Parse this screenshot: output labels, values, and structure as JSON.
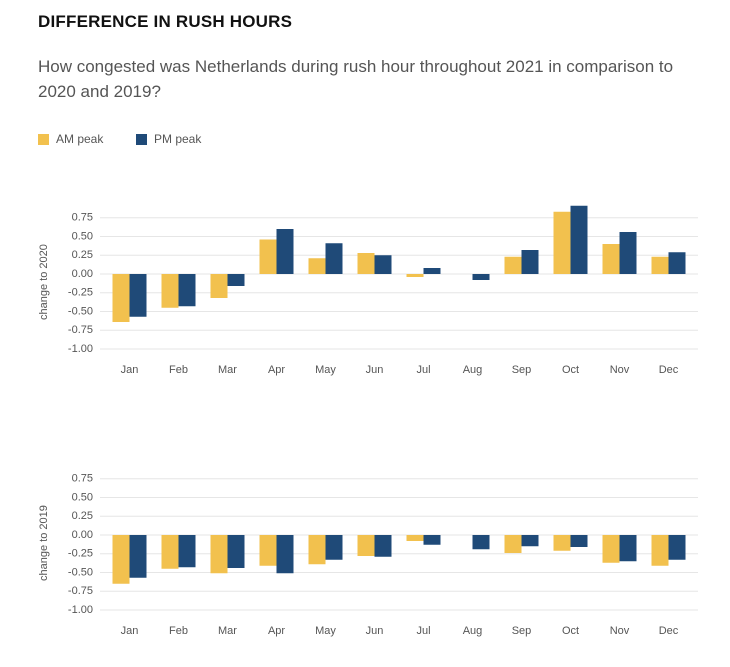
{
  "title": "DIFFERENCE IN RUSH HOURS",
  "subtitle": "How congested was Netherlands during rush hour throughout 2021 in comparison to 2020 and 2019?",
  "chart_data": [
    {
      "type": "bar",
      "y_label": "change to 2020",
      "categories": [
        "Jan",
        "Feb",
        "Mar",
        "Apr",
        "May",
        "Jun",
        "Jul",
        "Aug",
        "Sep",
        "Oct",
        "Nov",
        "Dec"
      ],
      "series": [
        {
          "name": "AM peak",
          "color": "#f2c14e",
          "values": [
            -0.64,
            -0.45,
            -0.32,
            0.46,
            0.21,
            0.28,
            -0.04,
            0,
            0.23,
            0.83,
            0.4,
            0.23
          ]
        },
        {
          "name": "PM peak",
          "color": "#1f4a78",
          "values": [
            -0.57,
            -0.43,
            -0.16,
            0.6,
            0.41,
            0.25,
            0.08,
            -0.08,
            0.32,
            0.91,
            0.56,
            0.29
          ]
        }
      ],
      "ylim": [
        -1,
        1
      ],
      "yticks": [
        {
          "value": -1,
          "label": "-1.00"
        },
        {
          "value": -0.75,
          "label": "-0.75"
        },
        {
          "value": -0.5,
          "label": "-0.50"
        },
        {
          "value": -0.25,
          "label": "-0.25"
        },
        {
          "value": 0,
          "label": "0.00"
        },
        {
          "value": 0.25,
          "label": "0.25"
        },
        {
          "value": 0.5,
          "label": "0.50"
        },
        {
          "value": 0.75,
          "label": "0.75"
        }
      ],
      "grid": true
    },
    {
      "type": "bar",
      "y_label": "change to 2019",
      "categories": [
        "Jan",
        "Feb",
        "Mar",
        "Apr",
        "May",
        "Jun",
        "Jul",
        "Aug",
        "Sep",
        "Oct",
        "Nov",
        "Dec"
      ],
      "series": [
        {
          "name": "AM peak",
          "color": "#f2c14e",
          "values": [
            -0.65,
            -0.45,
            -0.51,
            -0.41,
            -0.39,
            -0.28,
            -0.08,
            0,
            -0.24,
            -0.21,
            -0.37,
            -0.41
          ]
        },
        {
          "name": "PM peak",
          "color": "#1f4a78",
          "values": [
            -0.57,
            -0.43,
            -0.44,
            -0.51,
            -0.33,
            -0.29,
            -0.13,
            -0.19,
            -0.15,
            -0.16,
            -0.35,
            -0.33
          ]
        }
      ],
      "ylim": [
        -1,
        1
      ],
      "yticks": [
        {
          "value": -1,
          "label": "-1.00"
        },
        {
          "value": -0.75,
          "label": "-0.75"
        },
        {
          "value": -0.5,
          "label": "-0.50"
        },
        {
          "value": -0.25,
          "label": "-0.25"
        },
        {
          "value": 0,
          "label": "0.00"
        },
        {
          "value": 0.25,
          "label": "0.25"
        },
        {
          "value": 0.5,
          "label": "0.50"
        },
        {
          "value": 0.75,
          "label": "0.75"
        }
      ],
      "grid": true
    }
  ]
}
